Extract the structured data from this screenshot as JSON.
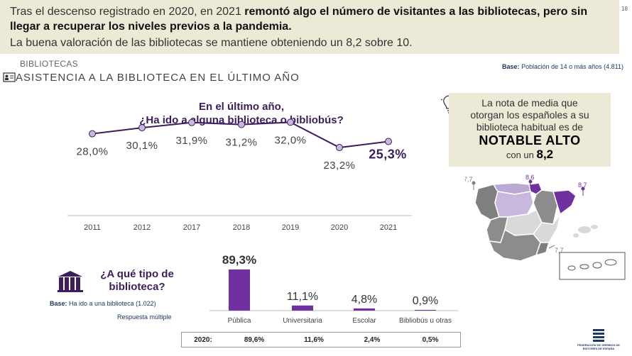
{
  "banner": {
    "line1_normal": "Tras el descenso registrado en 2020, en 2021 ",
    "line1_bold": "remontó algo el número de visitantes a las bibliotecas, pero sin llegar a recuperar los niveles previos a la pandemia.",
    "line2": "La buena valoración de las bibliotecas se mantiene obteniendo un 8,2 sobre 10.",
    "page_number": "18"
  },
  "section_label": "BIBLIOTECAS",
  "heading": "ASISTENCIA A LA BIBLIOTECA EN EL ÚLTIMO AÑO",
  "base_top": {
    "label": "Base:",
    "text": "Población de 14 o más años (4.811)"
  },
  "q1": {
    "line1": "En el último año,",
    "line2": "¿Ha ido a alguna biblioteca o bibliobús?"
  },
  "callout": {
    "line1": "La nota de media que",
    "line2": "otorgan los españoles a su",
    "line3": "biblioteca habitual es de",
    "big": "NOTABLE ALTO",
    "line5_prefix": "con un ",
    "line5_value": "8,2"
  },
  "map_labels": [
    "7,7",
    "8,6",
    "8,7",
    "7,7"
  ],
  "q2": {
    "line1": "¿A qué tipo de",
    "line2": "biblioteca?"
  },
  "base2": {
    "label": "Base:",
    "text": "Ha ido a una biblioteca (1.022)"
  },
  "respuesta": "Respuesta múltiple",
  "table2020": {
    "label": "2020:",
    "values": [
      "89,6%",
      "11,6%",
      "2,4%",
      "0,5%"
    ]
  },
  "logo_text": "FEDERACIÓN DE GREMIOS DE EDITORES DE ESPAÑA",
  "colors": {
    "accent": "#7030a0",
    "line": "#3c1e5c",
    "dot": "#c9b8dd",
    "banner": "#ece9d6"
  },
  "chart_data": [
    {
      "type": "line",
      "title": "En el último año, ¿Ha ido a alguna biblioteca o bibliobús?",
      "categories": [
        "2011",
        "2012",
        "2017",
        "2018",
        "2019",
        "2020",
        "2021"
      ],
      "values": [
        28.0,
        30.1,
        31.9,
        31.2,
        32.0,
        23.2,
        25.3
      ],
      "value_labels": [
        "28,0%",
        "30,1%",
        "31,9%",
        "31,2%",
        "32,0%",
        "23,2%",
        "25,3%"
      ],
      "ylim": [
        0,
        40
      ]
    },
    {
      "type": "bar",
      "title": "¿A qué tipo de biblioteca?",
      "categories": [
        "Pública",
        "Universitaria",
        "Escolar",
        "Bibliobús u otras"
      ],
      "values": [
        89.3,
        11.1,
        4.8,
        0.9
      ],
      "value_labels": [
        "89,3%",
        "11,1%",
        "4,8%",
        "0,9%"
      ],
      "ylim": [
        0,
        100
      ]
    }
  ]
}
